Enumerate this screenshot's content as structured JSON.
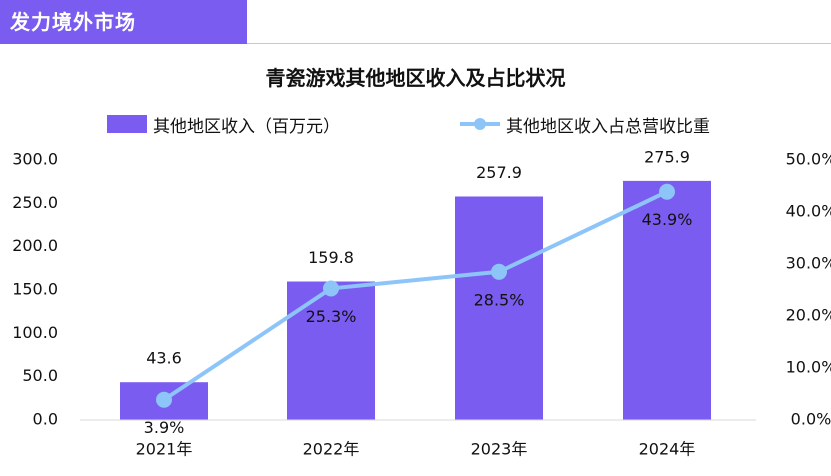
{
  "banner": {
    "title": "发力境外市场"
  },
  "colors": {
    "bar": "#7b5cf0",
    "line": "#8ec5f9",
    "banner": "#7b5cf0"
  },
  "chart_data": {
    "type": "bar",
    "title": "青瓷游戏其他地区收入及占比状况",
    "categories": [
      "2021年",
      "2022年",
      "2023年",
      "2024年"
    ],
    "series": [
      {
        "name": "其他地区收入（百万元）",
        "type": "bar",
        "axis": "left",
        "values": [
          43.6,
          159.8,
          257.9,
          275.9
        ],
        "labels": [
          "43.6",
          "159.8",
          "257.9",
          "275.9"
        ]
      },
      {
        "name": "其他地区收入占总营收比重",
        "type": "line",
        "axis": "right",
        "values": [
          3.9,
          25.3,
          28.5,
          43.9
        ],
        "labels": [
          "3.9%",
          "25.3%",
          "28.5%",
          "43.9%"
        ]
      }
    ],
    "y_left": {
      "ylim": [
        0,
        300
      ],
      "ticks": [
        "0.0",
        "50.0",
        "100.0",
        "150.0",
        "200.0",
        "250.0",
        "300.0"
      ]
    },
    "y_right": {
      "ylim": [
        0,
        50
      ],
      "ticks": [
        "0.0%",
        "10.0%",
        "20.0%",
        "30.0%",
        "40.0%",
        "50.0%"
      ]
    },
    "grid": false,
    "legend": "top"
  }
}
